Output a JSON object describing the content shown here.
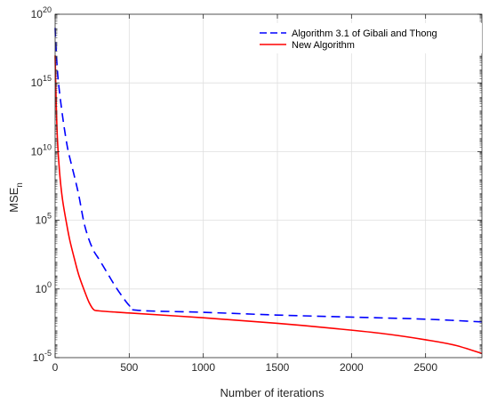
{
  "chart_data": {
    "type": "line",
    "title": "",
    "xlabel": "Number of iterations",
    "ylabel": {
      "main": "MSE",
      "subscript": "n"
    },
    "xlim": [
      0,
      2880
    ],
    "ylim_exponent": [
      -5,
      20
    ],
    "y_scale": "log",
    "x_ticks": [
      "0",
      "500",
      "1000",
      "1500",
      "2000",
      "2500"
    ],
    "x_tick_values": [
      0,
      500,
      1000,
      1500,
      2000,
      2500
    ],
    "y_ticks": [
      {
        "base": "10",
        "exp": "-5",
        "value_exp": -5
      },
      {
        "base": "10",
        "exp": "0",
        "value_exp": 0
      },
      {
        "base": "10",
        "exp": "5",
        "value_exp": 5
      },
      {
        "base": "10",
        "exp": "10",
        "value_exp": 10
      },
      {
        "base": "10",
        "exp": "15",
        "value_exp": 15
      },
      {
        "base": "10",
        "exp": "20",
        "value_exp": 20
      }
    ],
    "grid": true,
    "legend_position": "top-right",
    "series": [
      {
        "name": "Algorithm 3.1 of Gibali and Thong",
        "color": "#0000ff",
        "dash": "dashed",
        "x": [
          0,
          5,
          20,
          50,
          80,
          100,
          130,
          160,
          200,
          250,
          300,
          350,
          400,
          450,
          500,
          550,
          1000,
          1500,
          2000,
          2500,
          2880
        ],
        "log10_y": [
          19.0,
          17.8,
          15.3,
          12.6,
          10.5,
          9.5,
          8.2,
          6.8,
          4.6,
          3.0,
          2.1,
          1.2,
          0.3,
          -0.5,
          -1.2,
          -1.55,
          -1.7,
          -1.9,
          -2.05,
          -2.2,
          -2.4
        ]
      },
      {
        "name": "New Algorithm",
        "color": "#ff0000",
        "dash": "solid",
        "x": [
          0,
          5,
          15,
          30,
          50,
          80,
          100,
          130,
          160,
          200,
          230,
          260,
          300,
          500,
          1000,
          1500,
          2000,
          2250,
          2500,
          2700,
          2880
        ],
        "log10_y": [
          17.0,
          14.5,
          11.0,
          8.5,
          6.5,
          4.6,
          3.5,
          2.2,
          1.0,
          -0.2,
          -1.0,
          -1.5,
          -1.6,
          -1.75,
          -2.1,
          -2.5,
          -3.0,
          -3.3,
          -3.7,
          -4.1,
          -4.7
        ]
      }
    ]
  }
}
